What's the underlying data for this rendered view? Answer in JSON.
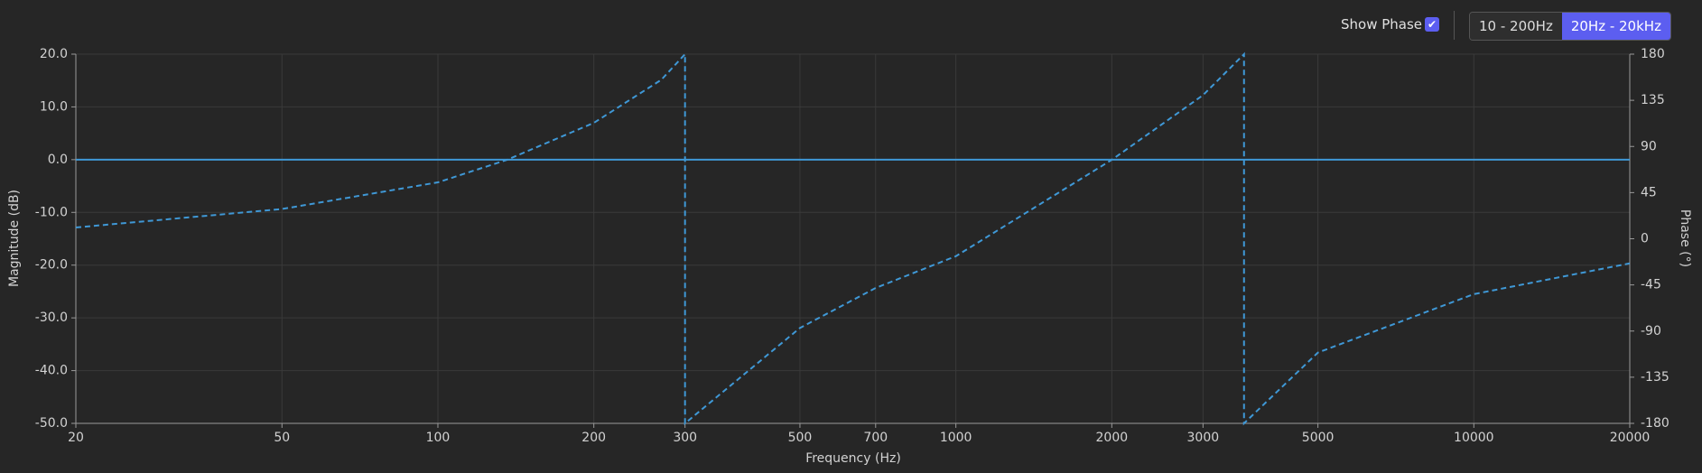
{
  "controls": {
    "show_phase_label": "Show Phase",
    "show_phase": true,
    "ranges": [
      "10 - 200Hz",
      "20Hz - 20kHz"
    ],
    "active_range": 1
  },
  "chart_data": {
    "type": "line",
    "log_x": true,
    "grid": true,
    "xlabel": "Frequency (Hz)",
    "ylabel": "Magnitude (dB)",
    "y2label": "Phase (°)",
    "x": [
      20,
      50,
      100,
      136,
      200,
      270,
      300,
      300,
      500,
      700,
      1000,
      2000,
      3000,
      3600,
      3600,
      5000,
      10000,
      20000
    ],
    "series": [
      {
        "name": "Magnitude",
        "color": "#3f98d6",
        "dashed": false,
        "values": [
          0,
          0,
          0,
          0,
          0,
          0,
          0,
          0,
          0,
          0,
          0,
          0,
          0,
          0,
          0,
          0,
          0,
          0
        ]
      },
      {
        "name": "Phase",
        "color": "#3f98d6",
        "dashed": true,
        "axis": "y2",
        "values": [
          11,
          29,
          55,
          77,
          113,
          155,
          180,
          -180,
          -87,
          -48,
          -17,
          77,
          140,
          180,
          -180,
          -111,
          -54,
          -24
        ]
      }
    ],
    "xlim": [
      20,
      20000
    ],
    "xticks": [
      20,
      50,
      100,
      200,
      300,
      500,
      700,
      1000,
      2000,
      3000,
      5000,
      10000,
      20000
    ],
    "ylim": [
      -50,
      20
    ],
    "yticks": [
      {
        "value": -50,
        "label": "-50.0"
      },
      {
        "value": -40,
        "label": "-40.0"
      },
      {
        "value": -30,
        "label": "-30.0"
      },
      {
        "value": -20,
        "label": "-20.0"
      },
      {
        "value": -10,
        "label": "-10.0"
      },
      {
        "value": 0,
        "label": "0.0"
      },
      {
        "value": 10,
        "label": "10.0"
      },
      {
        "value": 20,
        "label": "20.0"
      }
    ],
    "y2lim": [
      -180,
      180
    ],
    "y2ticks": [
      -180,
      -135,
      -90,
      -45,
      0,
      45,
      90,
      135,
      180
    ]
  }
}
